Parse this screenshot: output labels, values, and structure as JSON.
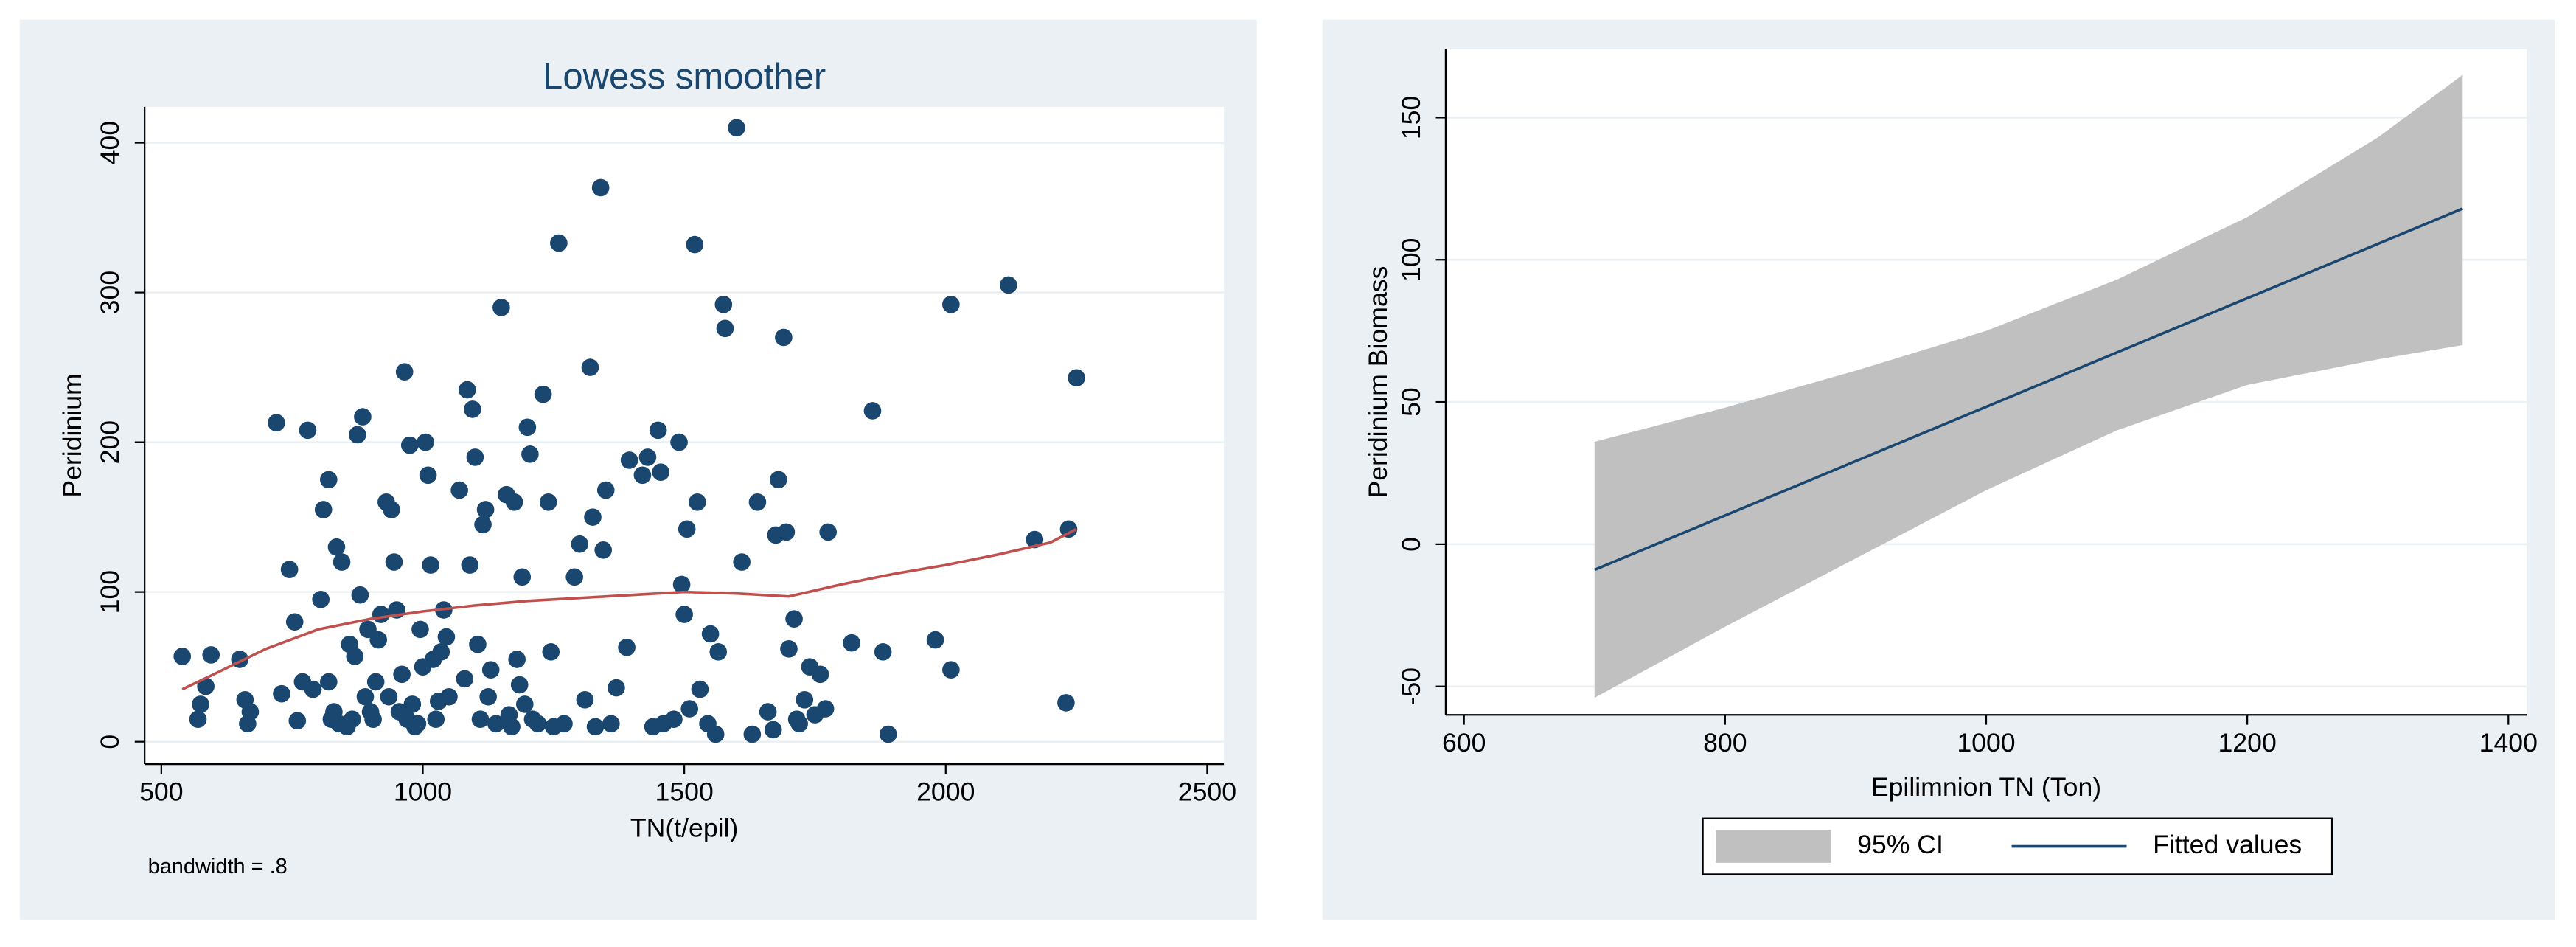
{
  "chart_data": [
    {
      "type": "scatter",
      "title": "Lowess smoother",
      "xlabel": "TN(t/epil)",
      "ylabel": "Peridinium",
      "annotation": "bandwidth = .8",
      "xlim": [
        468,
        2532
      ],
      "ylim": [
        -15,
        424
      ],
      "xticks": [
        500,
        1000,
        1500,
        2000,
        2500
      ],
      "yticks": [
        0,
        100,
        200,
        300,
        400
      ],
      "grid": true,
      "series": [
        {
          "type": "scatter",
          "color": "#1a476f",
          "x": [
            540,
            570,
            575,
            585,
            595,
            650,
            660,
            665,
            670,
            720,
            730,
            745,
            755,
            760,
            770,
            780,
            790,
            805,
            810,
            820,
            820,
            825,
            830,
            835,
            840,
            845,
            855,
            860,
            865,
            870,
            875,
            880,
            885,
            890,
            895,
            900,
            905,
            910,
            915,
            920,
            930,
            935,
            940,
            945,
            950,
            955,
            960,
            965,
            970,
            975,
            980,
            985,
            990,
            995,
            1000,
            1005,
            1010,
            1015,
            1020,
            1025,
            1030,
            1035,
            1040,
            1045,
            1050,
            1070,
            1080,
            1085,
            1090,
            1095,
            1100,
            1105,
            1110,
            1115,
            1120,
            1125,
            1130,
            1140,
            1150,
            1160,
            1165,
            1170,
            1175,
            1180,
            1185,
            1190,
            1195,
            1200,
            1205,
            1210,
            1220,
            1230,
            1240,
            1245,
            1250,
            1260,
            1270,
            1290,
            1300,
            1310,
            1320,
            1325,
            1330,
            1340,
            1345,
            1350,
            1360,
            1370,
            1390,
            1395,
            1420,
            1430,
            1440,
            1450,
            1455,
            1460,
            1480,
            1490,
            1495,
            1500,
            1505,
            1510,
            1520,
            1525,
            1530,
            1545,
            1550,
            1560,
            1565,
            1575,
            1578,
            1600,
            1610,
            1630,
            1640,
            1660,
            1670,
            1675,
            1680,
            1690,
            1695,
            1700,
            1710,
            1715,
            1720,
            1730,
            1740,
            1750,
            1760,
            1770,
            1775,
            1820,
            1860,
            1880,
            1890,
            1980,
            2010,
            2010,
            2120,
            2170,
            2230,
            2235,
            2250
          ],
          "values": [
            57,
            15,
            25,
            37,
            58,
            55,
            28,
            12,
            20,
            213,
            32,
            115,
            80,
            14,
            40,
            208,
            35,
            95,
            155,
            175,
            40,
            15,
            20,
            130,
            12,
            120,
            10,
            65,
            15,
            57,
            205,
            98,
            217,
            30,
            75,
            20,
            15,
            40,
            68,
            85,
            160,
            30,
            155,
            120,
            88,
            20,
            45,
            247,
            15,
            198,
            25,
            10,
            12,
            75,
            50,
            200,
            178,
            118,
            55,
            15,
            27,
            60,
            88,
            70,
            30,
            168,
            42,
            235,
            118,
            222,
            190,
            65,
            15,
            145,
            155,
            30,
            48,
            12,
            290,
            165,
            18,
            10,
            160,
            55,
            38,
            110,
            25,
            210,
            192,
            15,
            12,
            232,
            160,
            60,
            10,
            333,
            12,
            110,
            132,
            28,
            250,
            150,
            10,
            370,
            128,
            168,
            12,
            36,
            63,
            188,
            178,
            190,
            10,
            208,
            180,
            12,
            15,
            200,
            105,
            85,
            142,
            22,
            332,
            160,
            35,
            12,
            72,
            5,
            60,
            292,
            276,
            410,
            120,
            5,
            160,
            20,
            8,
            138,
            175,
            270,
            140,
            62,
            82,
            15,
            12,
            28,
            50,
            18,
            45,
            22,
            140,
            66,
            221,
            60,
            5,
            68,
            48,
            292,
            305,
            135,
            26,
            142,
            243
          ]
        },
        {
          "type": "line",
          "color": "#c0504d",
          "x": [
            540,
            600,
            700,
            800,
            900,
            1000,
            1100,
            1200,
            1300,
            1400,
            1500,
            1600,
            1700,
            1800,
            1900,
            2000,
            2100,
            2200,
            2250
          ],
          "values": [
            35,
            45,
            62,
            75,
            82,
            87,
            91,
            94,
            96,
            98,
            100,
            99,
            97,
            105,
            112,
            118,
            125,
            133,
            142
          ]
        }
      ]
    },
    {
      "type": "line",
      "xlabel": "Epilimnion TN (Ton)",
      "ylabel": "Peridinium Biomass",
      "xlim": [
        586,
        1414
      ],
      "ylim": [
        -60,
        174
      ],
      "xticks": [
        600,
        800,
        1000,
        1200,
        1400
      ],
      "yticks": [
        -50,
        0,
        50,
        100,
        150
      ],
      "grid": true,
      "legend": "bottom",
      "series": [
        {
          "type": "area",
          "name": "95% CI",
          "color": "#c0c0c0",
          "x": [
            700,
            800,
            900,
            1000,
            1100,
            1200,
            1300,
            1365
          ],
          "upper": [
            36,
            48,
            61,
            75,
            93,
            115,
            143,
            165
          ],
          "lower": [
            -54,
            -29,
            -5,
            19,
            40,
            56,
            65,
            70
          ]
        },
        {
          "type": "line",
          "name": "Fitted values",
          "color": "#1a476f",
          "x": [
            700,
            1365
          ],
          "values": [
            -9,
            118
          ]
        }
      ]
    }
  ]
}
